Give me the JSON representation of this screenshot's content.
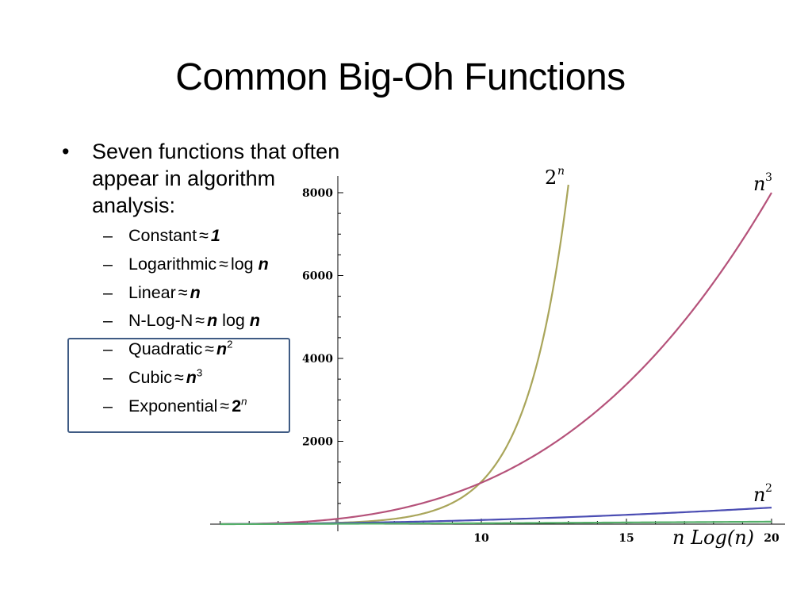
{
  "slide": {
    "title": "Common Big-Oh Functions",
    "bullet": "Seven functions that often appear in algorithm analysis:",
    "approx_symbol": "≈",
    "items": [
      {
        "label": "Constant",
        "value": "1",
        "bold": true,
        "italic": true,
        "sup": ""
      },
      {
        "label": "Logarithmic",
        "value_prefix": "log ",
        "value": "n",
        "bold": true,
        "italic": true,
        "sup": ""
      },
      {
        "label": "Linear",
        "value": "n",
        "bold": true,
        "italic": true,
        "sup": ""
      },
      {
        "label": "N-Log-N",
        "value": "n",
        "value_suffix_plain": " log ",
        "value_suffix": "n",
        "bold": true,
        "italic": true,
        "sup": ""
      },
      {
        "label": "Quadratic",
        "value": "n",
        "bold": true,
        "italic": true,
        "sup": "2"
      },
      {
        "label": "Cubic",
        "value": "n",
        "bold": true,
        "italic": true,
        "sup": "3"
      },
      {
        "label": "Exponential",
        "value": "2",
        "bold": true,
        "italic": false,
        "sup": "n"
      }
    ]
  },
  "chart_data": {
    "type": "line",
    "title": "",
    "xlabel": "",
    "ylabel": "",
    "xlim": [
      1,
      21
    ],
    "ylim": [
      0,
      8000
    ],
    "x_ticks": [
      10,
      15,
      20
    ],
    "y_ticks": [
      2000,
      4000,
      6000,
      8000
    ],
    "grid": false,
    "series": [
      {
        "name": "2^n",
        "label_base": "2",
        "label_sup": "n",
        "formula": "2^n",
        "color": "#a9a55a",
        "x_range": [
          1,
          13
        ]
      },
      {
        "name": "n^3",
        "label_base": "n",
        "label_sup": "3",
        "formula": "n^3",
        "color": "#b5527a",
        "x_range": [
          1,
          20
        ]
      },
      {
        "name": "n^2",
        "label_base": "n",
        "label_sup": "2",
        "formula": "n^2",
        "color": "#4b4db3",
        "x_range": [
          1,
          20
        ]
      },
      {
        "name": "nLog(n)",
        "label_text": "n Log(n)",
        "formula": "n*log(n)",
        "color": "#55b06a",
        "x_range": [
          1,
          20
        ]
      }
    ]
  }
}
